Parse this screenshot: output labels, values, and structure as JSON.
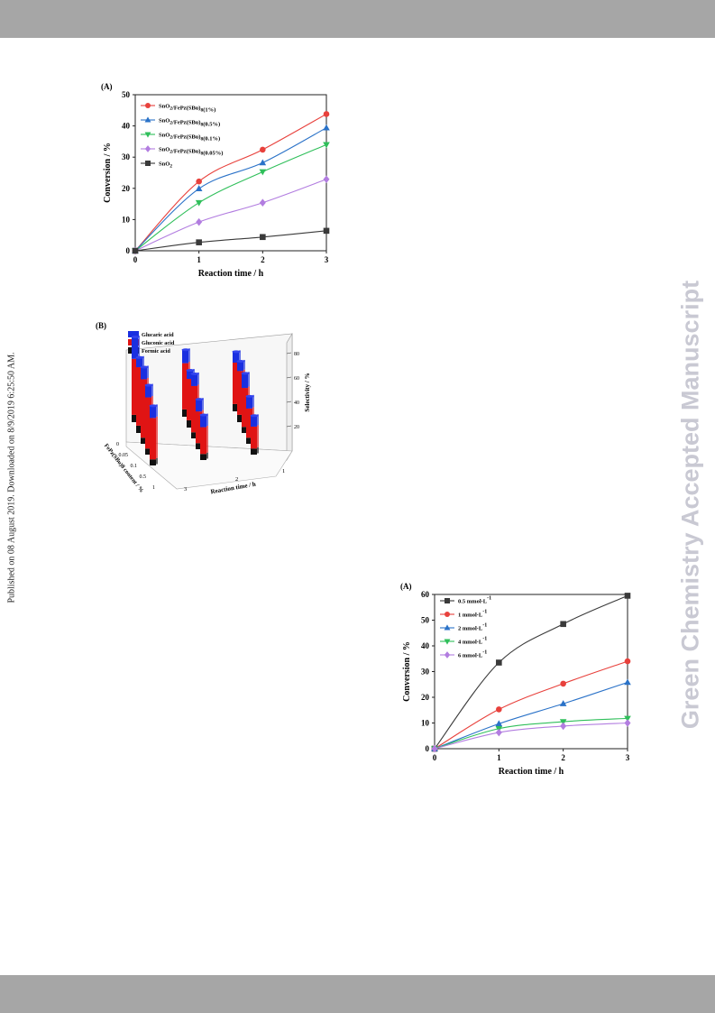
{
  "page": {
    "side_note": "Published on 08 August 2019. Downloaded on 8/9/2019 6:25:50 AM.",
    "watermark": "Green Chemistry Accepted Manuscript"
  },
  "chart_data": [
    {
      "type": "line",
      "panel_label": "(A)",
      "xlabel": "Reaction time / h",
      "ylabel": "Conversion / %",
      "x": [
        0,
        1,
        2,
        3
      ],
      "xlim": [
        0,
        3
      ],
      "ylim": [
        0,
        50
      ],
      "xticks": [
        0,
        1,
        2,
        3
      ],
      "yticks": [
        0,
        10,
        20,
        30,
        40,
        50
      ],
      "legend_placement": "top-left",
      "series": [
        {
          "name": "SnO2/FePz(SBu)8(1%)",
          "color": "#e8413c",
          "marker": "circle",
          "values": [
            0,
            22.2,
            32.4,
            43.8
          ]
        },
        {
          "name": "SnO2/FePz(SBu)8(0.5%)",
          "color": "#2a72c8",
          "marker": "triangle-up",
          "values": [
            0,
            19.9,
            28.2,
            39.4
          ]
        },
        {
          "name": "SnO2/FePz(SBu)8(0.1%)",
          "color": "#2fbf5a",
          "marker": "triangle-down",
          "values": [
            0,
            15.4,
            25.3,
            34.0
          ]
        },
        {
          "name": "SnO2/FePz(SBu)8(0.05%)",
          "color": "#b27de0",
          "marker": "diamond",
          "values": [
            0,
            9.2,
            15.4,
            22.9
          ]
        },
        {
          "name": "SnO2",
          "color": "#3a3a3a",
          "marker": "square",
          "values": [
            0,
            2.7,
            4.4,
            6.4
          ]
        }
      ]
    },
    {
      "type": "bar3d",
      "panel_label": "(B)",
      "zlabel": "Selectivity / %",
      "xlabel": "Reaction time / h",
      "ylabel": "FePz(SBu)8 content / %",
      "zticks": [
        20,
        40,
        60,
        80
      ],
      "content_ticks": [
        "0",
        "0.05",
        "0.1",
        "0.5",
        "1"
      ],
      "time_ticks": [
        "1",
        "2",
        "3"
      ],
      "legend": [
        {
          "name": "Glucaric acid",
          "color": "#1a2fe0"
        },
        {
          "name": "Gluconic acid",
          "color": "#e01414"
        },
        {
          "name": "Formic acid",
          "color": "#111111"
        }
      ],
      "stacks": [
        [
          [
            6,
            34,
            9
          ],
          [
            6,
            36,
            8
          ],
          [
            5,
            32,
            12
          ],
          [
            5,
            24,
            10
          ],
          [
            5,
            18,
            9
          ]
        ],
        [
          [
            6,
            38,
            11
          ],
          [
            6,
            34,
            7
          ],
          [
            5,
            38,
            10
          ],
          [
            5,
            26,
            10
          ],
          [
            5,
            22,
            10
          ]
        ],
        [
          [
            6,
            46,
            18
          ],
          [
            6,
            48,
            8
          ],
          [
            5,
            48,
            10
          ],
          [
            5,
            42,
            10
          ],
          [
            5,
            34,
            10
          ]
        ]
      ]
    },
    {
      "type": "line",
      "panel_label": "(A)",
      "xlabel": "Reaction time / h",
      "ylabel": "Conversion / %",
      "x": [
        0,
        1,
        2,
        3
      ],
      "xlim": [
        0,
        3
      ],
      "ylim": [
        0,
        60
      ],
      "xticks": [
        0,
        1,
        2,
        3
      ],
      "yticks": [
        0,
        10,
        20,
        30,
        40,
        50,
        60
      ],
      "legend_placement": "top-left",
      "series": [
        {
          "name": "0.5 mmol·L-1",
          "color": "#3a3a3a",
          "marker": "square",
          "values": [
            0,
            33.5,
            48.5,
            59.5
          ]
        },
        {
          "name": "1 mmol·L-1",
          "color": "#e8413c",
          "marker": "circle",
          "values": [
            0,
            15.3,
            25.3,
            34.0
          ]
        },
        {
          "name": "2 mmol·L-1",
          "color": "#2a72c8",
          "marker": "triangle-up",
          "values": [
            0,
            9.7,
            17.5,
            25.8
          ]
        },
        {
          "name": "4 mmol·L-1",
          "color": "#2fbf5a",
          "marker": "triangle-down",
          "values": [
            0,
            7.8,
            10.5,
            11.8
          ]
        },
        {
          "name": "6 mmol·L-1",
          "color": "#b27de0",
          "marker": "diamond",
          "values": [
            0,
            6.3,
            8.8,
            10.0
          ]
        }
      ]
    }
  ]
}
